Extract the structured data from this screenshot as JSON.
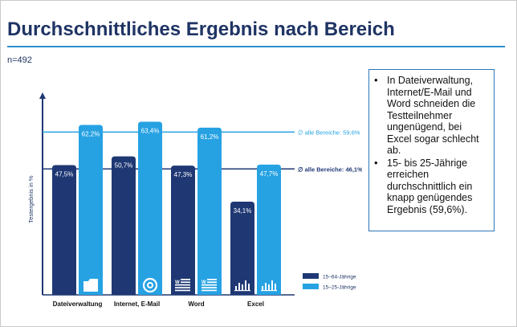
{
  "slide": {
    "title": "Durchschnittliches Ergebnis nach Bereich",
    "sample": "n=492",
    "notes": [
      "In Dateiverwaltung, Internet/E-Mail und Word schneiden die Testteilnehmer ungenügend, bei Excel sogar schlecht ab.",
      "15- bis 25-Jährige erreichen durchschnittlich ein knapp genügendes Ergebnis (59,6%)."
    ]
  },
  "chart_data": {
    "type": "bar",
    "title": "",
    "xlabel": "",
    "ylabel": "Testergebnis in %",
    "ylim": [
      0,
      70
    ],
    "categories": [
      "Dateiverwaltung",
      "Internet, E-Mail",
      "Word",
      "Excel"
    ],
    "category_icons": [
      "folder-icon",
      "at-sign-icon",
      "word-document-icon",
      "excel-chart-icon"
    ],
    "series": [
      {
        "name": "15–64-Jährige",
        "color": "#1f3874",
        "values": [
          47.5,
          50.7,
          47.3,
          34.1
        ],
        "labels": [
          "47,5%",
          "50,7%",
          "47,3%",
          "34,1%"
        ]
      },
      {
        "name": "15–25-Jährige",
        "color": "#26a2e3",
        "values": [
          62.2,
          63.4,
          61.2,
          47.7
        ],
        "labels": [
          "62,2%",
          "63,4%",
          "61,2%",
          "47,7%"
        ]
      }
    ],
    "reference_lines": [
      {
        "value": 59.6,
        "label": "∅ alle Bereiche: 59,6%",
        "color": "#26a2e3"
      },
      {
        "value": 46.1,
        "label": "∅ alle Bereiche: 46,1%",
        "color": "#1f3874"
      }
    ],
    "legend_position": "bottom-right"
  }
}
